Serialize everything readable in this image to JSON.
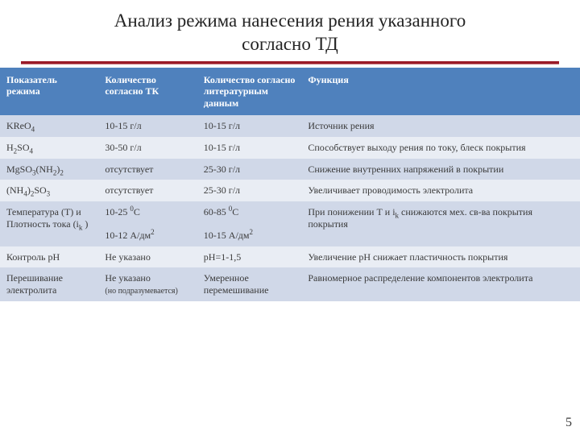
{
  "title_line1": "Анализ режима нанесения рения указанного",
  "title_line2": "согласно ТД",
  "header_bg": "#4f81bd",
  "header_fg": "#ffffff",
  "row_odd_bg": "#d0d8e8",
  "row_even_bg": "#e9edf4",
  "rule_color": "#9a1b28",
  "page_number": "5",
  "columns": [
    "Показатель режима",
    "Количество согласно ТК",
    "Количество согласно литературным данным",
    "Функция"
  ],
  "rows": [
    {
      "c0": "KReO",
      "c0_sub": "4",
      "c1": "10-15 г/л",
      "c2": "10-15 г/л",
      "c3": "Источник рения"
    },
    {
      "c0": "H",
      "c0_sub": "2",
      "c0_b": "SO",
      "c0_sub2": "4",
      "c1": "30-50  г/л",
      "c2": "10-15 г/л",
      "c3": "Способствует выходу рения по току, блеск покрытия"
    },
    {
      "c0": "MgSO",
      "c0_sub": "3",
      "c0_b": "(NH",
      "c0_sub2": "2",
      "c0_c": ")",
      "c0_sub3": "2",
      "c1": "отсутствует",
      "c2": "25-30 г/л",
      "c3": "Снижение внутренних напряжений в покрытии"
    },
    {
      "c0": "(NH",
      "c0_sub": "4",
      "c0_b": ")",
      "c0_sub2": "2",
      "c0_c": "SO",
      "c0_sub3": "3",
      "c1": "отсутствует",
      "c2": "25-30 г/л",
      "c3": "Увеличивает проводимость электролита"
    },
    {
      "c0_plain_line1": "Температура (Т) и",
      "c0_plain_line2a": "Плотность тока (i",
      "c0_plain_line2sub": "k",
      "c0_plain_line2b": " )",
      "c1_line1a": "10-25 ",
      "c1_line1sup": "0",
      "c1_line1b": "C",
      "c1_line2a": "10-12 А/дм",
      "c1_line2sup": "2",
      "c2_line1a": "60-85  ",
      "c2_line1sup": "0",
      "c2_line1b": "C",
      "c2_line2a": "10-15 А/дм",
      "c2_line2sup": "2",
      "c3a": "При понижении Т и i",
      "c3sub": "k",
      "c3b": " снижаются мех. св-ва покрытия покрытия"
    },
    {
      "c0": "Контроль pH",
      "c1": "Не указано",
      "c2": "pH=1-1,5",
      "c3": "Увеличение pH снижает пластичность покрытия"
    },
    {
      "c0": "Перешивание электролита",
      "c1_line1": "Не указано",
      "c1_line2_small": "(но подразумевается)",
      "c2": "Умеренное перемешивание",
      "c3": "Равномерное распределение компонентов электролита"
    }
  ]
}
